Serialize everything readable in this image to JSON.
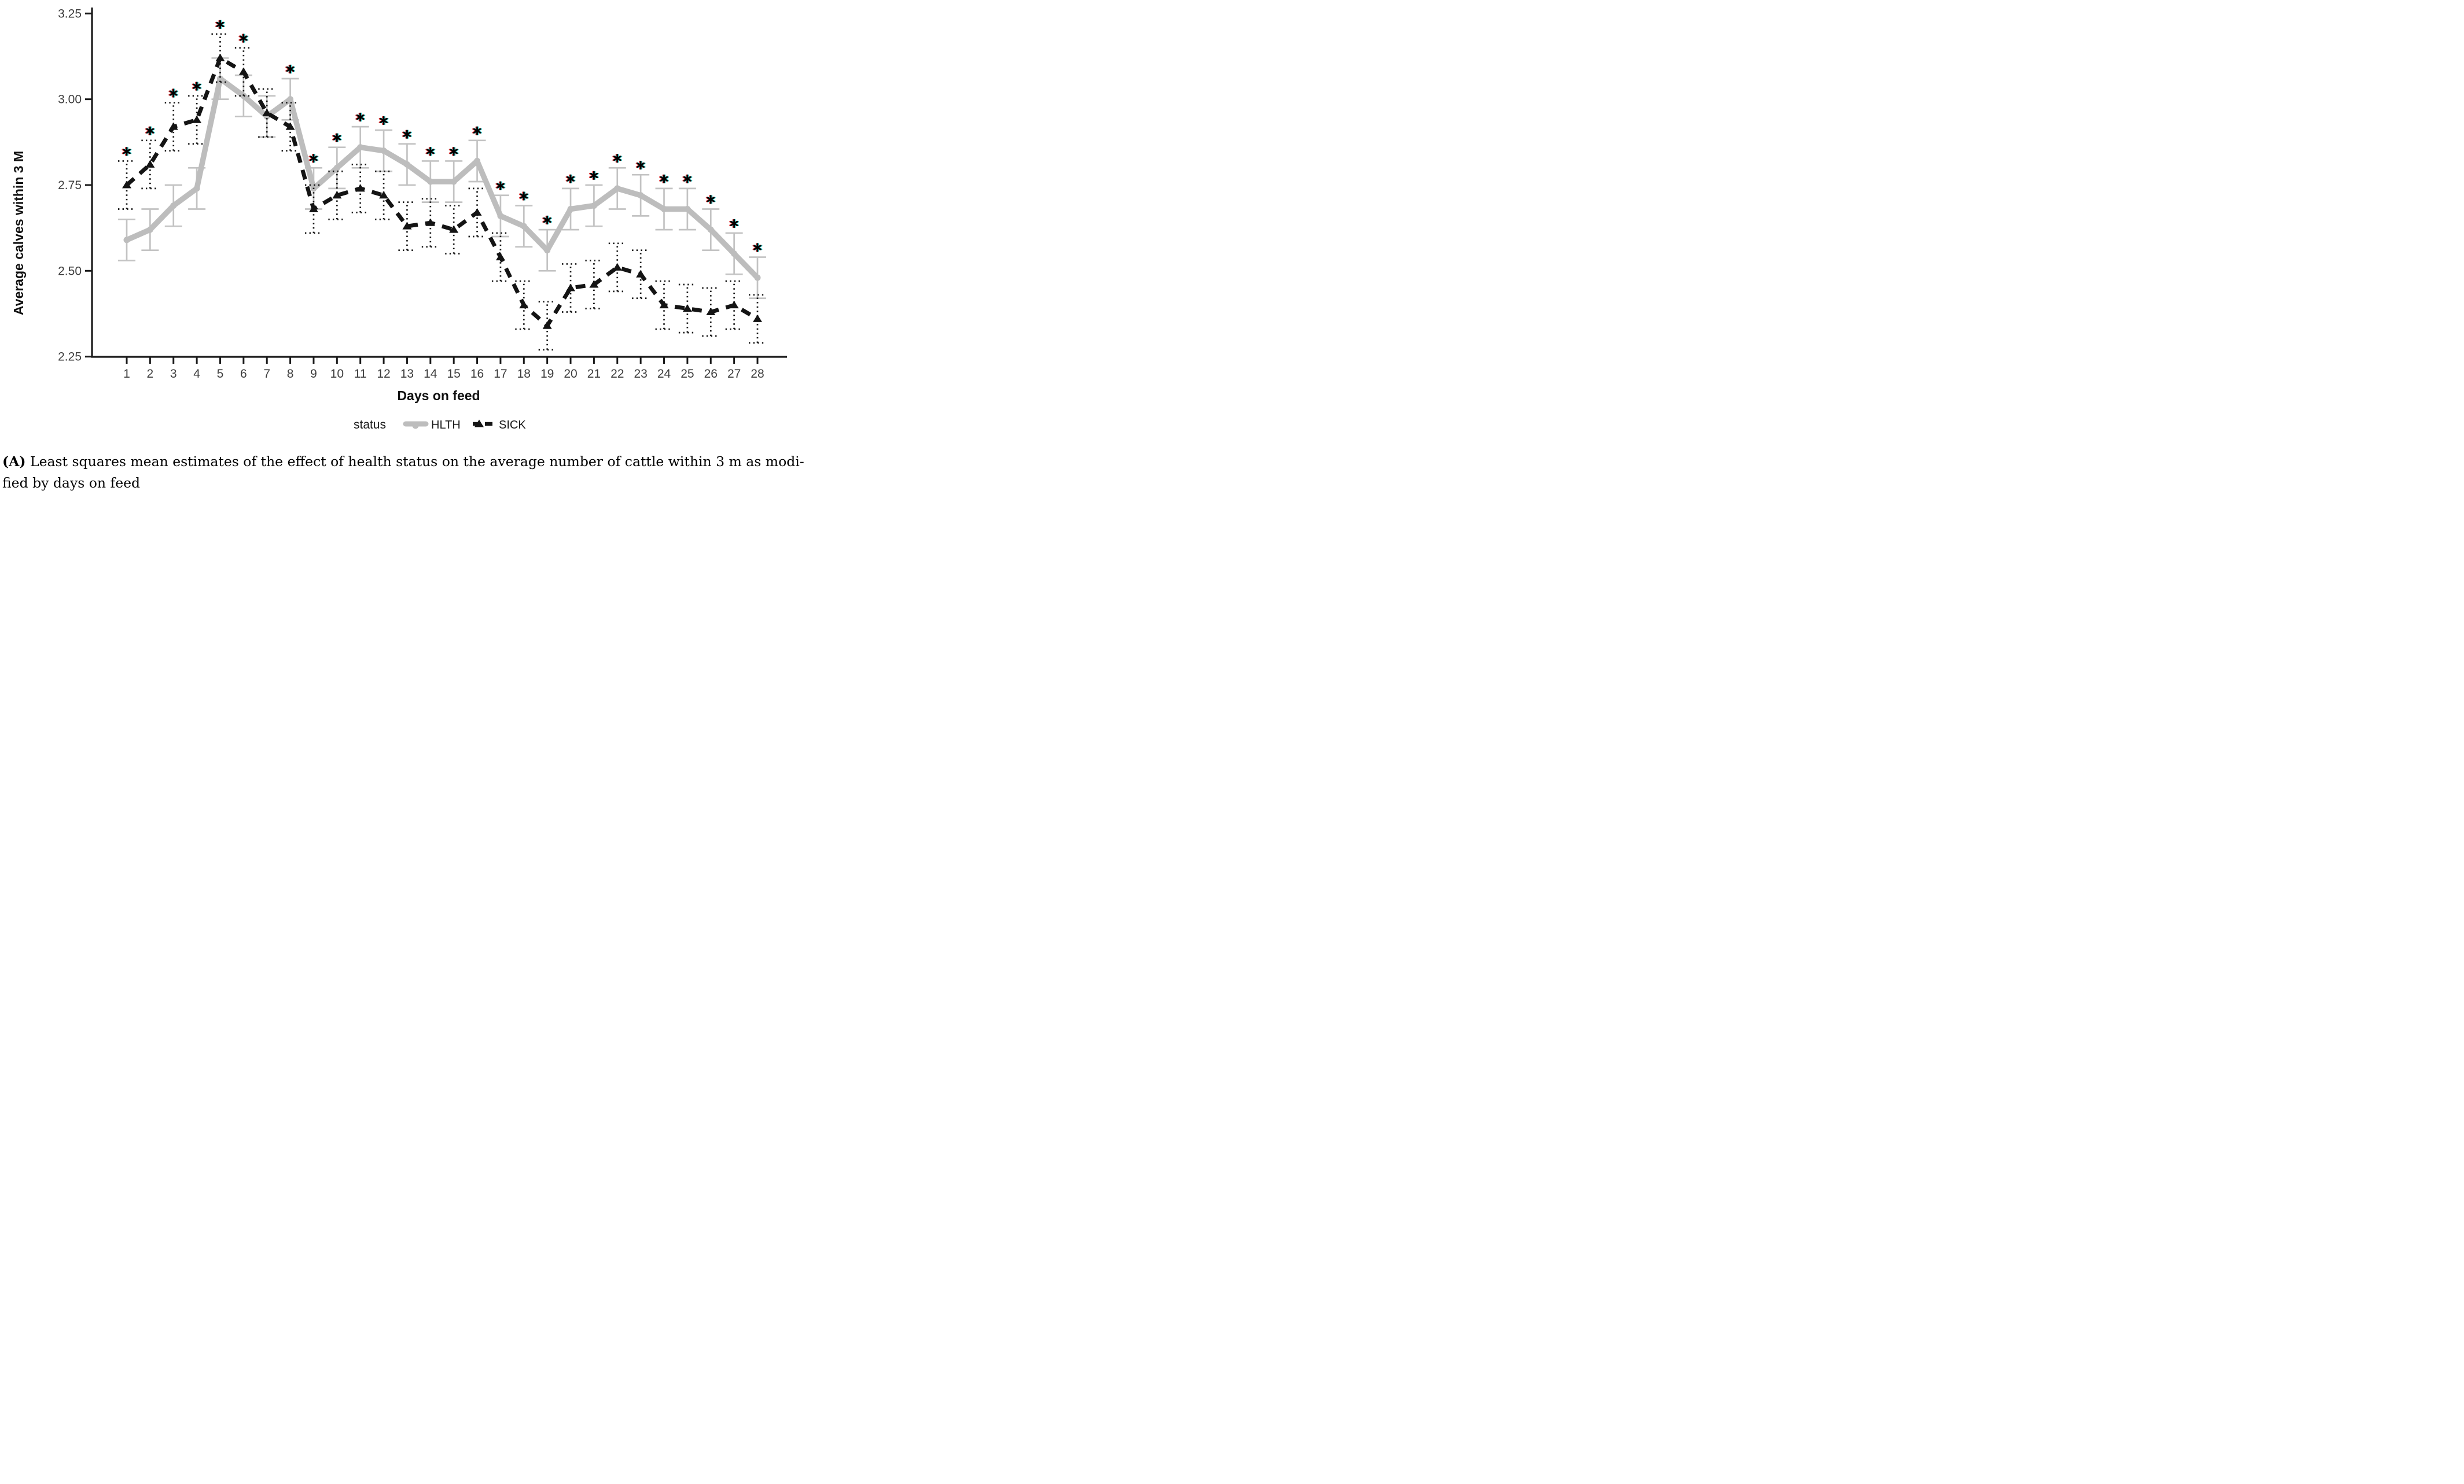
{
  "figure": {
    "caption": {
      "panel_label": "(A)",
      "line1": "Least squares mean estimates of the effect of health status on the average number of cattle within 3 m as modi-",
      "line2": "fied by days on feed"
    }
  },
  "chart_data": {
    "type": "line",
    "title": "",
    "xlabel": "Days on feed",
    "ylabel": "Average calves within 3 M",
    "legend_title": "status",
    "legend_position": "bottom",
    "grid": "off",
    "x_days": [
      1,
      2,
      3,
      4,
      5,
      6,
      7,
      8,
      9,
      10,
      11,
      12,
      13,
      14,
      15,
      16,
      17,
      18,
      19,
      20,
      21,
      22,
      23,
      24,
      25,
      26,
      27,
      28
    ],
    "yticks": [
      "3.25",
      "3.00",
      "2.75",
      "2.50",
      "2.25"
    ],
    "ytick_values": [
      3.25,
      3.0,
      2.75,
      2.5,
      2.25
    ],
    "ylim": [
      2.25,
      3.27
    ],
    "series": [
      {
        "name": "HLTH",
        "color": "#bdbdbd",
        "line_style": "solid",
        "marker": "circle",
        "error_half_width": 0.06,
        "values": [
          2.59,
          2.62,
          2.69,
          2.74,
          3.06,
          3.01,
          2.95,
          3.0,
          2.74,
          2.8,
          2.86,
          2.85,
          2.81,
          2.76,
          2.76,
          2.82,
          2.66,
          2.63,
          2.56,
          2.68,
          2.69,
          2.74,
          2.72,
          2.68,
          2.68,
          2.62,
          2.55,
          2.48
        ]
      },
      {
        "name": "SICK",
        "color": "#141414",
        "line_style": "dashed",
        "marker": "triangle",
        "error_half_width": 0.07,
        "values": [
          2.75,
          2.81,
          2.92,
          2.94,
          3.12,
          3.08,
          2.96,
          2.92,
          2.68,
          2.72,
          2.74,
          2.72,
          2.63,
          2.64,
          2.62,
          2.67,
          2.54,
          2.4,
          2.34,
          2.45,
          2.46,
          2.51,
          2.49,
          2.4,
          2.39,
          2.38,
          2.4,
          2.36
        ]
      }
    ],
    "significance_days": [
      1,
      2,
      3,
      4,
      5,
      6,
      8,
      9,
      10,
      11,
      12,
      13,
      14,
      15,
      16,
      17,
      18,
      19,
      20,
      21,
      22,
      23,
      24,
      25,
      26,
      27,
      28
    ],
    "significance_symbol": "*",
    "significance_color": "#000000",
    "fringe_colors": {
      "left": "#e02020",
      "right": "#20d0d0"
    }
  }
}
